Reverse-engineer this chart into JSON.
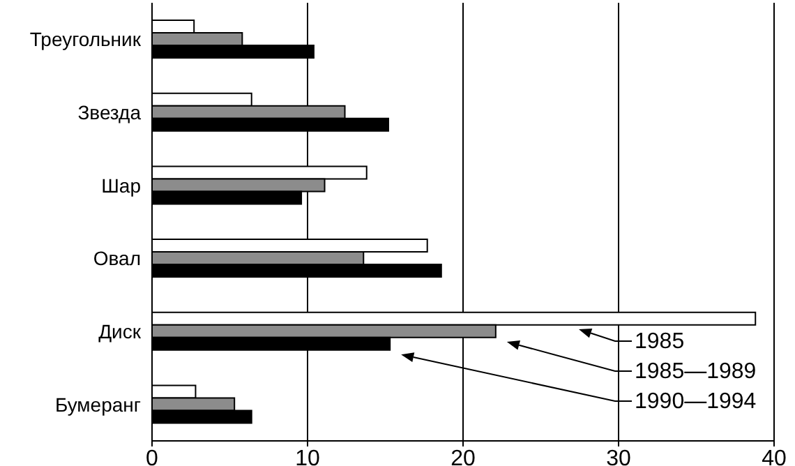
{
  "chart_data": {
    "type": "bar",
    "orientation": "horizontal",
    "categories": [
      "Треугольник",
      "Звезда",
      "Шар",
      "Овал",
      "Диск",
      "Бумеранг"
    ],
    "series": [
      {
        "name": "1985",
        "color": "#ffffff",
        "values": [
          2.7,
          6.4,
          13.8,
          17.7,
          38.8,
          2.8
        ]
      },
      {
        "name": "1985—1989",
        "color": "#8c8c8c",
        "values": [
          5.8,
          12.4,
          11.1,
          13.6,
          22.1,
          5.3
        ]
      },
      {
        "name": "1990—1994",
        "color": "#000000",
        "values": [
          10.4,
          15.2,
          9.6,
          18.6,
          15.3,
          6.4
        ]
      }
    ],
    "xlim": [
      0,
      40
    ],
    "xticks": [
      0,
      10,
      20,
      30,
      40
    ],
    "grid": "x",
    "legend": "bottom right"
  }
}
